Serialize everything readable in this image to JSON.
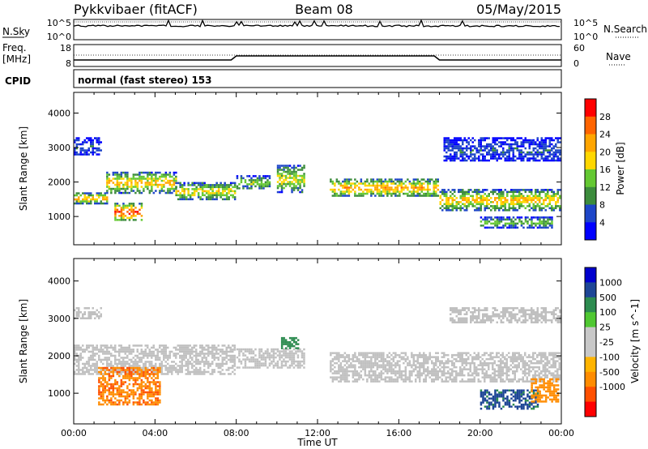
{
  "header": {
    "station": "Pykkvibaer (fitACF)",
    "beam": "Beam 08",
    "date": "05/May/2015"
  },
  "top_panels": {
    "nsky_label": "N.Sky",
    "nsearch_label": "N.Search",
    "nsky_ticks_left": [
      "10^5",
      "10^0"
    ],
    "nsky_ticks_right": [
      "10^5",
      "10^0"
    ],
    "freq_label_1": "Freq.",
    "freq_label_2": "[MHz]",
    "freq_ticks": [
      "18",
      "8"
    ],
    "nave_label": "Nave",
    "nave_ticks": [
      "60",
      "0"
    ],
    "cpid_label": "CPID",
    "cpid_value": "normal (fast stereo) 153"
  },
  "colors": {
    "power_scale": [
      "#0000ff",
      "#1e46c8",
      "#3c8c3c",
      "#64c832",
      "#ffd700",
      "#ffa500",
      "#ff6400",
      "#ff0000"
    ],
    "velocity_scale": [
      "#ff0000",
      "#ff5000",
      "#ff8c00",
      "#ffb400",
      "#c8c8c8",
      "#c8c8c8",
      "#50c832",
      "#2d8c50",
      "#1e4696",
      "#0000cd"
    ],
    "ground_scatter": "#c0c0c0",
    "axis": "#000000"
  },
  "chart_data": [
    {
      "type": "heatmap",
      "panel": "power",
      "ylabel": "Slant Range [km]",
      "xlabel": "Time UT",
      "x_ticks": [
        "00:00",
        "04:00",
        "08:00",
        "12:00",
        "16:00",
        "20:00",
        "00:00"
      ],
      "y_ticks": [
        1000,
        2000,
        3000,
        4000
      ],
      "ylim": [
        180,
        4600
      ],
      "xlim_hours": [
        0,
        24
      ],
      "colorbar_label": "Power [dB]",
      "colorbar_ticks": [
        "28",
        "24",
        "20",
        "16",
        "12",
        "8",
        "4"
      ],
      "colorbar_range": [
        0,
        30
      ],
      "bands": [
        {
          "t": [
            0.0,
            1.6
          ],
          "range_km": [
            1400,
            1700
          ],
          "value": 22
        },
        {
          "t": [
            1.6,
            5.0
          ],
          "range_km": [
            1700,
            2300
          ],
          "value": 20
        },
        {
          "t": [
            5.0,
            7.9
          ],
          "range_km": [
            1500,
            2000
          ],
          "value": 18
        },
        {
          "t": [
            2.0,
            3.3
          ],
          "range_km": [
            900,
            1400
          ],
          "value": 28
        },
        {
          "t": [
            8.0,
            9.6
          ],
          "range_km": [
            1800,
            2200
          ],
          "value": 14
        },
        {
          "t": [
            10.0,
            11.3
          ],
          "range_km": [
            1700,
            2500
          ],
          "value": 16
        },
        {
          "t": [
            12.6,
            17.9
          ],
          "range_km": [
            1600,
            2100
          ],
          "value": 22
        },
        {
          "t": [
            18.0,
            23.9
          ],
          "range_km": [
            1200,
            1800
          ],
          "value": 20
        },
        {
          "t": [
            20.0,
            23.5
          ],
          "range_km": [
            700,
            1000
          ],
          "value": 14
        },
        {
          "t": [
            18.2,
            23.9
          ],
          "range_km": [
            2600,
            3300
          ],
          "value": 6
        },
        {
          "t": [
            0.0,
            1.3
          ],
          "range_km": [
            2800,
            3300
          ],
          "value": 6
        }
      ]
    },
    {
      "type": "heatmap",
      "panel": "velocity",
      "ylabel": "Slant Range [km]",
      "xlabel": "Time UT",
      "x_ticks": [
        "00:00",
        "04:00",
        "08:00",
        "12:00",
        "16:00",
        "20:00",
        "00:00"
      ],
      "y_ticks": [
        1000,
        2000,
        3000,
        4000
      ],
      "ylim": [
        180,
        4600
      ],
      "xlim_hours": [
        0,
        24
      ],
      "colorbar_label": "Velocity [m s^-1]",
      "colorbar_ticks": [
        "1000",
        "500",
        "100",
        "25",
        "-25",
        "-100",
        "-500",
        "-1000"
      ],
      "bands": [
        {
          "t": [
            0.0,
            7.9
          ],
          "range_km": [
            1500,
            2300
          ],
          "value": 0,
          "ground_scatter": true
        },
        {
          "t": [
            8.0,
            11.3
          ],
          "range_km": [
            1700,
            2200
          ],
          "value": 0,
          "ground_scatter": true
        },
        {
          "t": [
            12.6,
            23.9
          ],
          "range_km": [
            1300,
            2100
          ],
          "value": 0,
          "ground_scatter": true
        },
        {
          "t": [
            1.2,
            4.2
          ],
          "range_km": [
            700,
            1700
          ],
          "value": -450
        },
        {
          "t": [
            10.2,
            11.0
          ],
          "range_km": [
            2200,
            2500
          ],
          "value": 300
        },
        {
          "t": [
            20.0,
            22.8
          ],
          "range_km": [
            600,
            1100
          ],
          "value": 600
        },
        {
          "t": [
            18.5,
            23.9
          ],
          "range_km": [
            2900,
            3300
          ],
          "value": 0,
          "ground_scatter": true
        },
        {
          "t": [
            22.5,
            23.8
          ],
          "range_km": [
            800,
            1400
          ],
          "value": -300
        },
        {
          "t": [
            0.0,
            1.3
          ],
          "range_km": [
            3000,
            3300
          ],
          "value": 0,
          "ground_scatter": true
        }
      ]
    }
  ]
}
